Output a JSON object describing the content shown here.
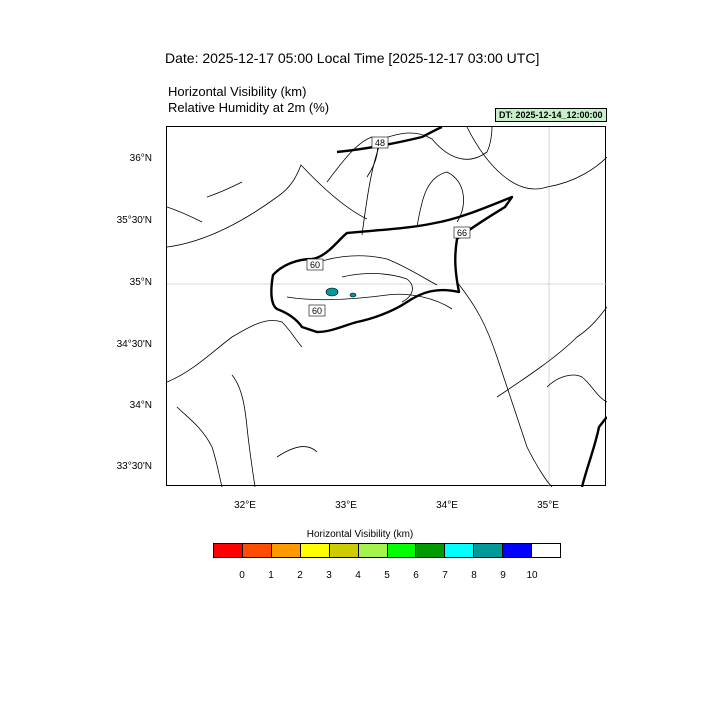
{
  "header": {
    "title": "Date: 2025-12-17  05:00 Local Time [2025-12-17  03:00 UTC]",
    "var1": "Horizontal Visibility   (km)",
    "var2": "Relative Humidity at 2m   (%)",
    "dt_badge": "DT: 2025-12-14_12:00:00"
  },
  "map": {
    "lat_labels": [
      "36°N",
      "35°30'N",
      "35°N",
      "34°30'N",
      "34°N",
      "33°30'N"
    ],
    "lon_labels": [
      "32°E",
      "33°E",
      "34°E",
      "35°E"
    ],
    "contour_labels": [
      "48",
      "66",
      "60",
      "60"
    ]
  },
  "colorbar": {
    "title": "Horizontal Visibility  (km)",
    "ticks": [
      "0",
      "1",
      "2",
      "3",
      "4",
      "5",
      "6",
      "7",
      "8",
      "9",
      "10"
    ],
    "colors": [
      "#ff0000",
      "#ff4d00",
      "#ff9900",
      "#ffff00",
      "#cccc00",
      "#a6f24d",
      "#00ff00",
      "#009900",
      "#00ffff",
      "#009999",
      "#0000ff",
      "#ffffff"
    ]
  }
}
